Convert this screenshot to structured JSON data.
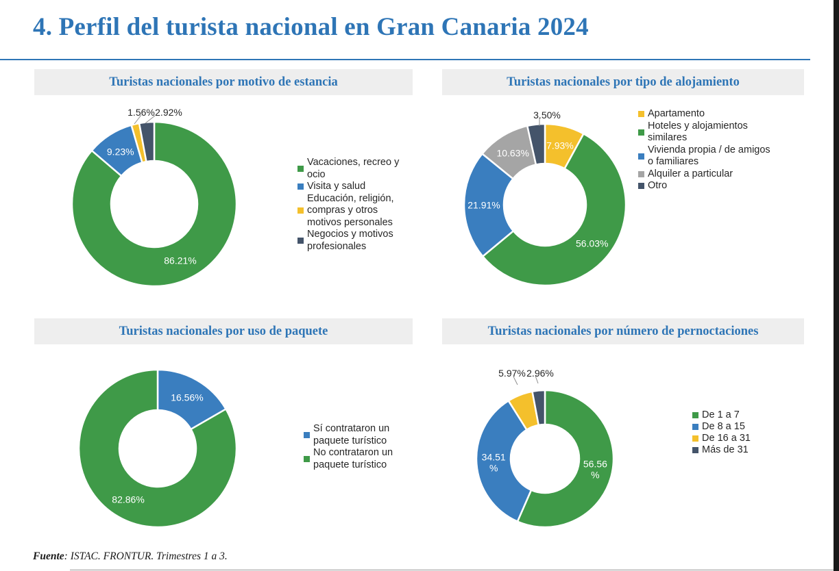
{
  "page": {
    "title": "4. Perfil del turista nacional en Gran Canaria 2024",
    "source_label": "Fuente",
    "source_text": ": ISTAC. FRONTUR. Trimestres 1 a 3."
  },
  "colors": {
    "title": "#2e75b6",
    "green": "#3f9a48",
    "blue": "#3a7ebf",
    "yellow": "#f4c02c",
    "gray": "#a5a5a5",
    "navy": "#44546a"
  },
  "chart_data": [
    {
      "id": "motivo",
      "type": "pie",
      "donut": true,
      "title": "Turistas nacionales por motivo de estancia",
      "categories": [
        "Vacaciones, recreo y\nocio",
        "Visita y salud",
        "Educación, religión,\ncompras y otros\nmotivos personales",
        "Negocios y motivos\nprofesionales"
      ],
      "values": [
        86.21,
        9.23,
        1.56,
        2.92
      ],
      "labels": [
        "86.21%",
        "9.23%",
        "1.56%",
        "2.92%"
      ],
      "colors": [
        "#3f9a48",
        "#3a7ebf",
        "#f4c02c",
        "#44546a"
      ],
      "legend": "right"
    },
    {
      "id": "alojamiento",
      "type": "pie",
      "donut": true,
      "title": "Turistas nacionales por tipo de alojamiento",
      "categories": [
        "Apartamento",
        "Hoteles y alojamientos\nsimilares",
        "Vivienda propia / de amigos\no familiares",
        "Alquiler a particular",
        "Otro"
      ],
      "values": [
        7.93,
        56.03,
        21.91,
        10.63,
        3.5
      ],
      "labels": [
        "7.93%",
        "56.03%",
        "21.91%",
        "10.63%",
        "3.50%"
      ],
      "colors": [
        "#f4c02c",
        "#3f9a48",
        "#3a7ebf",
        "#a5a5a5",
        "#44546a"
      ],
      "legend": "right"
    },
    {
      "id": "paquete",
      "type": "pie",
      "donut": true,
      "title": "Turistas nacionales por uso de paquete",
      "categories": [
        "Sí contrataron un\npaquete turístico",
        "No contrataron un\npaquete turístico"
      ],
      "values": [
        16.56,
        82.86
      ],
      "labels": [
        "16.56%",
        "82.86%"
      ],
      "colors": [
        "#3a7ebf",
        "#3f9a48"
      ],
      "legend": "right"
    },
    {
      "id": "noches",
      "type": "pie",
      "donut": true,
      "title": "Turistas nacionales por número de pernoctaciones",
      "categories": [
        "De 1 a 7",
        "De 8 a 15",
        "De 16 a 31",
        "Más de 31"
      ],
      "values": [
        56.56,
        34.51,
        5.97,
        2.96
      ],
      "labels": [
        "56.56\n%",
        "34.51\n%",
        "5.97%",
        "2.96%"
      ],
      "colors": [
        "#3f9a48",
        "#3a7ebf",
        "#f4c02c",
        "#44546a"
      ],
      "legend": "right"
    }
  ]
}
